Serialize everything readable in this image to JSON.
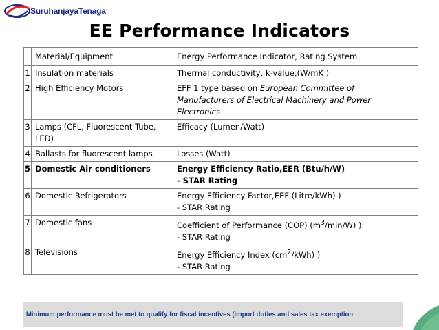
{
  "header": {
    "logo_text": "SuruhanjayaTenaga",
    "logo_icon": "swoosh-logo-icon",
    "title": "EE Performance Indicators"
  },
  "table": {
    "col_material": "Material/Equipment",
    "col_indicator": "Energy Performance Indicator, Rating System",
    "rows": [
      {
        "num": "1",
        "material": "Insulation materials",
        "indicator": "Thermal conductivity, k-value,(W/mK )"
      },
      {
        "num": "2",
        "material": "High Efficiency Motors",
        "indicator_prefix": "EFF 1  type based on ",
        "indicator_italic": "European Committee of Manufacturers of Electrical Machinery and Power Electronics"
      },
      {
        "num": "3",
        "material": "Lamps (CFL, Fluorescent Tube, LED)",
        "indicator": "Efficacy (Lumen/Watt)"
      },
      {
        "num": "4",
        "material": "Ballasts for fluorescent lamps",
        "indicator": "Losses (Watt)"
      },
      {
        "num": "5",
        "material": "Domestic Air conditioners",
        "indicator": "Energy Efficiency Ratio,EER (Btu/h/W)",
        "rating": "- STAR Rating"
      },
      {
        "num": "6",
        "material": "Domestic Refrigerators",
        "indicator": "Energy Efficiency Factor,EEF,(Litre/kWh) )",
        "rating": "- STAR Rating"
      },
      {
        "num": "7",
        "material": "Domestic fans",
        "indicator_a": "Coefficient of Performance (COP) (m",
        "indicator_sup": "3",
        "indicator_b": "/min/W) ):",
        "rating": "- STAR Rating"
      },
      {
        "num": "8",
        "material": "Televisions",
        "indicator_a": "Energy Efficiency Index (cm",
        "indicator_sup": "2",
        "indicator_b": "/kWh) )",
        "rating": "- STAR Rating"
      }
    ]
  },
  "note": "Minimum performance must be met  to qualify  for fiscal  incentives (import  duties and sales tax exemption",
  "colors": {
    "note_text": "#1f3c8f",
    "note_bg": "#dcdcdc",
    "logo_red": "#e0262b",
    "logo_blue": "#1b2a7a",
    "deco_green": "#3a9e6a"
  }
}
